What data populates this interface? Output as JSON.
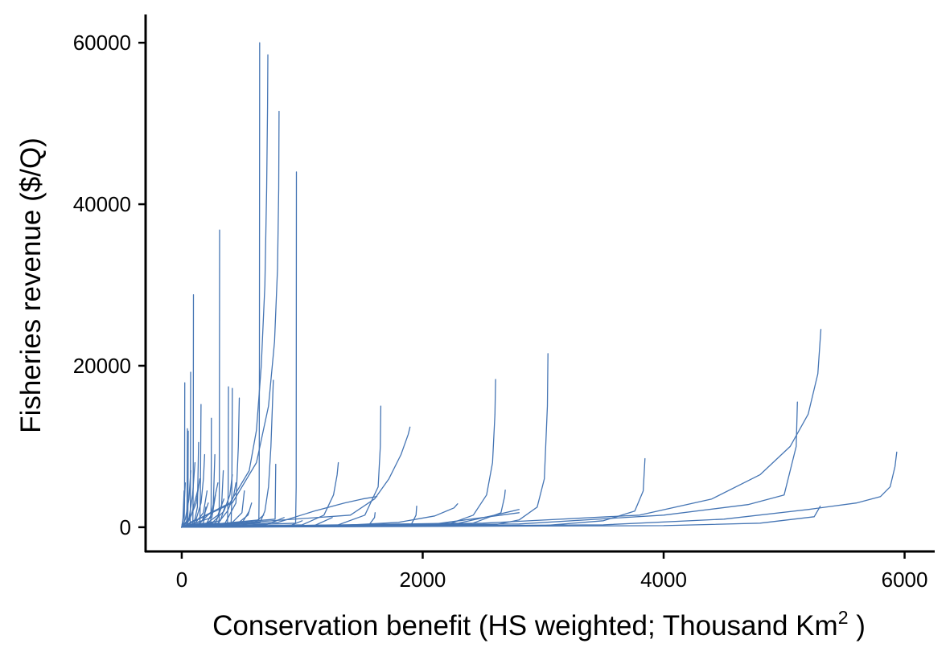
{
  "chart_data": {
    "type": "line",
    "xlabel": "Conservation benefit (HS weighted; Thousand  Km",
    "xlabel_superscript": "2",
    "xlabel_suffix": " )",
    "ylabel": "Fisheries revenue ($/Q)",
    "xlim": [
      -300,
      6250
    ],
    "ylim": [
      -3000,
      63500
    ],
    "x_ticks": [
      0,
      2000,
      4000,
      6000
    ],
    "y_ticks": [
      0,
      20000,
      40000,
      60000
    ],
    "x_tick_labels": [
      "0",
      "2000",
      "4000",
      "6000"
    ],
    "y_tick_labels": [
      "0",
      "20000",
      "40000",
      "60000"
    ],
    "grid": false,
    "legend": "none",
    "line_color": "#4575b4",
    "series": [
      {
        "x": [
          0,
          640,
          643,
          645,
          647
        ],
        "y": [
          0,
          900,
          5000,
          20000,
          60000
        ]
      },
      {
        "x": [
          0,
          400,
          560,
          620,
          660,
          690,
          705,
          712,
          715
        ],
        "y": [
          0,
          3000,
          7000,
          12000,
          20000,
          30000,
          42000,
          52000,
          58500
        ]
      },
      {
        "x": [
          0,
          420,
          620,
          720,
          770,
          795,
          805,
          808
        ],
        "y": [
          0,
          3000,
          8000,
          15000,
          23000,
          32000,
          42000,
          51500
        ]
      },
      {
        "x": [
          0,
          945,
          950,
          952
        ],
        "y": [
          0,
          500,
          5000,
          44000
        ]
      },
      {
        "x": [
          0,
          310,
          312,
          314
        ],
        "y": [
          0,
          400,
          6000,
          36800
        ]
      },
      {
        "x": [
          0,
          92,
          95,
          97
        ],
        "y": [
          0,
          300,
          5000,
          28800
        ]
      },
      {
        "x": [
          0,
          650,
          690,
          720,
          740,
          755,
          760
        ],
        "y": [
          0,
          600,
          2000,
          5000,
          10000,
          16000,
          18200
        ]
      },
      {
        "x": [
          0,
          775,
          780
        ],
        "y": [
          0,
          1000,
          7800
        ]
      },
      {
        "x": [
          0,
          2600,
          2800,
          2950,
          3010,
          3035,
          3040
        ],
        "y": [
          0,
          300,
          900,
          2500,
          6000,
          15000,
          21500
        ]
      },
      {
        "x": [
          0,
          2200,
          2420,
          2530,
          2580,
          2600,
          2605
        ],
        "y": [
          0,
          300,
          1500,
          4000,
          8000,
          14000,
          18300
        ]
      },
      {
        "x": [
          0,
          1300,
          1520,
          1630,
          1648,
          1652
        ],
        "y": [
          0,
          300,
          1500,
          5000,
          10000,
          15000
        ]
      },
      {
        "x": [
          0,
          1400,
          1600,
          1720,
          1820,
          1880,
          1895
        ],
        "y": [
          0,
          1500,
          3500,
          6000,
          9000,
          11500,
          12400
        ]
      },
      {
        "x": [
          0,
          1000,
          1180,
          1260,
          1290,
          1300
        ],
        "y": [
          0,
          300,
          1500,
          4000,
          6500,
          8000
        ]
      },
      {
        "x": [
          0,
          800,
          1100,
          1350,
          1500,
          1620
        ],
        "y": [
          0,
          600,
          2000,
          3000,
          3500,
          3800
        ]
      },
      {
        "x": [
          0,
          2800,
          4000,
          4700,
          5000,
          5100,
          5110
        ],
        "y": [
          0,
          400,
          1500,
          2800,
          4000,
          10000,
          15500
        ]
      },
      {
        "x": [
          0,
          2500,
          3800,
          4400,
          4800,
          5050,
          5200,
          5280,
          5305
        ],
        "y": [
          0,
          500,
          1500,
          3500,
          6500,
          10000,
          14000,
          19000,
          24500
        ]
      },
      {
        "x": [
          0,
          3500,
          4500,
          5200,
          5600,
          5800,
          5880,
          5920,
          5935
        ],
        "y": [
          0,
          300,
          1000,
          2200,
          3000,
          3800,
          5000,
          7500,
          9300
        ]
      },
      {
        "x": [
          0,
          4000,
          4800,
          5250,
          5300
        ],
        "y": [
          0,
          200,
          500,
          1300,
          2600
        ]
      },
      {
        "x": [
          0,
          3000,
          3500,
          3760,
          3830,
          3845
        ],
        "y": [
          0,
          200,
          800,
          2000,
          4500,
          8500
        ]
      },
      {
        "x": [
          0,
          1300,
          1800,
          2100,
          2260,
          2290
        ],
        "y": [
          0,
          200,
          600,
          1400,
          2400,
          2900
        ]
      },
      {
        "x": [
          0,
          2400,
          2650,
          2680,
          2685
        ],
        "y": [
          0,
          400,
          1800,
          3800,
          4600
        ]
      },
      {
        "x": [
          0,
          2300,
          2600,
          2800
        ],
        "y": [
          0,
          500,
          1500,
          2200
        ]
      },
      {
        "x": [
          0,
          2100,
          2500,
          2800
        ],
        "y": [
          0,
          400,
          1200,
          1800
        ]
      },
      {
        "x": [
          0,
          1900,
          1945,
          1950
        ],
        "y": [
          0,
          200,
          1500,
          2600
        ]
      },
      {
        "x": [
          0,
          1550,
          1600,
          1605
        ],
        "y": [
          0,
          200,
          1200,
          1800
        ]
      },
      {
        "x": [
          0,
          1100,
          1250
        ],
        "y": [
          0,
          200,
          1200
        ]
      },
      {
        "x": [
          0,
          20,
          23,
          25
        ],
        "y": [
          0,
          300,
          3000,
          17900
        ]
      },
      {
        "x": [
          0,
          70,
          72,
          74
        ],
        "y": [
          0,
          300,
          3000,
          19200
        ]
      },
      {
        "x": [
          0,
          50,
          52,
          54
        ],
        "y": [
          0,
          200,
          3000,
          11900
        ]
      },
      {
        "x": [
          0,
          40,
          44,
          47
        ],
        "y": [
          0,
          200,
          3000,
          12200
        ]
      },
      {
        "x": [
          0,
          150,
          155,
          160
        ],
        "y": [
          0,
          400,
          4000,
          15200
        ]
      },
      {
        "x": [
          0,
          240,
          244,
          246
        ],
        "y": [
          0,
          200,
          3000,
          13500
        ]
      },
      {
        "x": [
          0,
          380,
          385,
          388
        ],
        "y": [
          0,
          400,
          4000,
          17400
        ]
      },
      {
        "x": [
          0,
          410,
          416,
          420
        ],
        "y": [
          0,
          400,
          4000,
          17200
        ]
      },
      {
        "x": [
          0,
          360,
          450,
          470,
          478
        ],
        "y": [
          0,
          500,
          3000,
          10000,
          16000
        ]
      },
      {
        "x": [
          0,
          200,
          260,
          275
        ],
        "y": [
          0,
          300,
          2000,
          9000
        ]
      },
      {
        "x": [
          0,
          100,
          130,
          140
        ],
        "y": [
          0,
          300,
          2500,
          10500
        ]
      },
      {
        "x": [
          0,
          60,
          90,
          110
        ],
        "y": [
          0,
          1000,
          4000,
          8000
        ]
      },
      {
        "x": [
          0,
          120,
          160,
          180,
          190
        ],
        "y": [
          0,
          1000,
          3000,
          6000,
          9000
        ]
      },
      {
        "x": [
          0,
          280,
          330,
          345
        ],
        "y": [
          0,
          500,
          2500,
          7000
        ]
      },
      {
        "x": [
          0,
          250,
          350,
          400,
          420
        ],
        "y": [
          0,
          500,
          2000,
          4000,
          6500
        ]
      },
      {
        "x": [
          0,
          300,
          380,
          430,
          450
        ],
        "y": [
          0,
          500,
          2000,
          3800,
          5500
        ]
      },
      {
        "x": [
          0,
          150,
          250,
          300
        ],
        "y": [
          0,
          500,
          2000,
          5500
        ]
      },
      {
        "x": [
          0,
          60,
          120,
          150
        ],
        "y": [
          0,
          800,
          3000,
          6000
        ]
      },
      {
        "x": [
          0,
          30,
          60,
          75
        ],
        "y": [
          0,
          1000,
          3500,
          7000
        ]
      },
      {
        "x": [
          0,
          15,
          30
        ],
        "y": [
          0,
          1500,
          5500
        ]
      },
      {
        "x": [
          0,
          200,
          300,
          350
        ],
        "y": [
          0,
          400,
          1500,
          3500
        ]
      },
      {
        "x": [
          0,
          400,
          500,
          520
        ],
        "y": [
          0,
          300,
          1800,
          4500
        ]
      },
      {
        "x": [
          0,
          450,
          550,
          580
        ],
        "y": [
          0,
          300,
          1500,
          3000
        ]
      },
      {
        "x": [
          0,
          500,
          560
        ],
        "y": [
          0,
          500,
          2000
        ]
      },
      {
        "x": [
          0,
          100,
          180,
          210
        ],
        "y": [
          0,
          300,
          1800,
          4500
        ]
      },
      {
        "x": [
          0,
          80,
          140
        ],
        "y": [
          0,
          1500,
          5000
        ]
      },
      {
        "x": [
          0,
          170,
          220
        ],
        "y": [
          0,
          800,
          3000
        ]
      },
      {
        "x": [
          0,
          250,
          280
        ],
        "y": [
          0,
          1200,
          4000
        ]
      },
      {
        "x": [
          0,
          10,
          20
        ],
        "y": [
          0,
          1000,
          4500
        ]
      },
      {
        "x": [
          0,
          180,
          200
        ],
        "y": [
          0,
          500,
          2500
        ]
      },
      {
        "x": [
          0,
          320,
          360
        ],
        "y": [
          0,
          800,
          2600
        ]
      },
      {
        "x": [
          0,
          600,
          680
        ],
        "y": [
          0,
          500,
          1500
        ]
      },
      {
        "x": [
          0,
          700,
          850
        ],
        "y": [
          0,
          300,
          1200
        ]
      },
      {
        "x": [
          0,
          900,
          1000
        ],
        "y": [
          0,
          200,
          800
        ]
      }
    ]
  }
}
